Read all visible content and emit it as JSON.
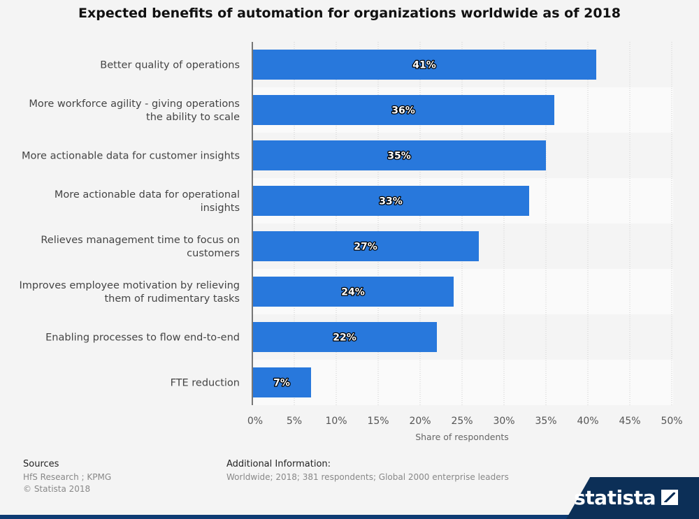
{
  "title": "Expected benefits of automation for organizations worldwide as of 2018",
  "chart_data": {
    "type": "bar",
    "orientation": "horizontal",
    "categories": [
      [
        "Better quality of operations"
      ],
      [
        "More workforce agility - giving operations",
        "the ability to scale"
      ],
      [
        "More actionable data for customer insights"
      ],
      [
        "More actionable data for operational",
        "insights"
      ],
      [
        "Relieves management time to focus on",
        "customers"
      ],
      [
        "Improves employee motivation by relieving",
        "them of rudimentary tasks"
      ],
      [
        "Enabling processes to flow end-to-end"
      ],
      [
        "FTE reduction"
      ]
    ],
    "values": [
      41,
      36,
      35,
      33,
      27,
      24,
      22,
      7
    ],
    "data_labels": [
      "41%",
      "36%",
      "35%",
      "33%",
      "27%",
      "24%",
      "22%",
      "7%"
    ],
    "xlabel": "Share of respondents",
    "xlim": [
      0,
      50
    ],
    "xticks": [
      "0%",
      "5%",
      "10%",
      "15%",
      "20%",
      "25%",
      "30%",
      "35%",
      "40%",
      "45%",
      "50%"
    ],
    "grid": true,
    "bar_color": "#2878dc"
  },
  "footer": {
    "sources_label": "Sources",
    "sources_text": [
      "HfS Research ; KPMG",
      "© Statista 2018"
    ],
    "info_label": "Additional Information:",
    "info_text": "Worldwide; 2018; 381 respondents; Global 2000 enterprise leaders"
  },
  "brand": {
    "name": "statista"
  }
}
